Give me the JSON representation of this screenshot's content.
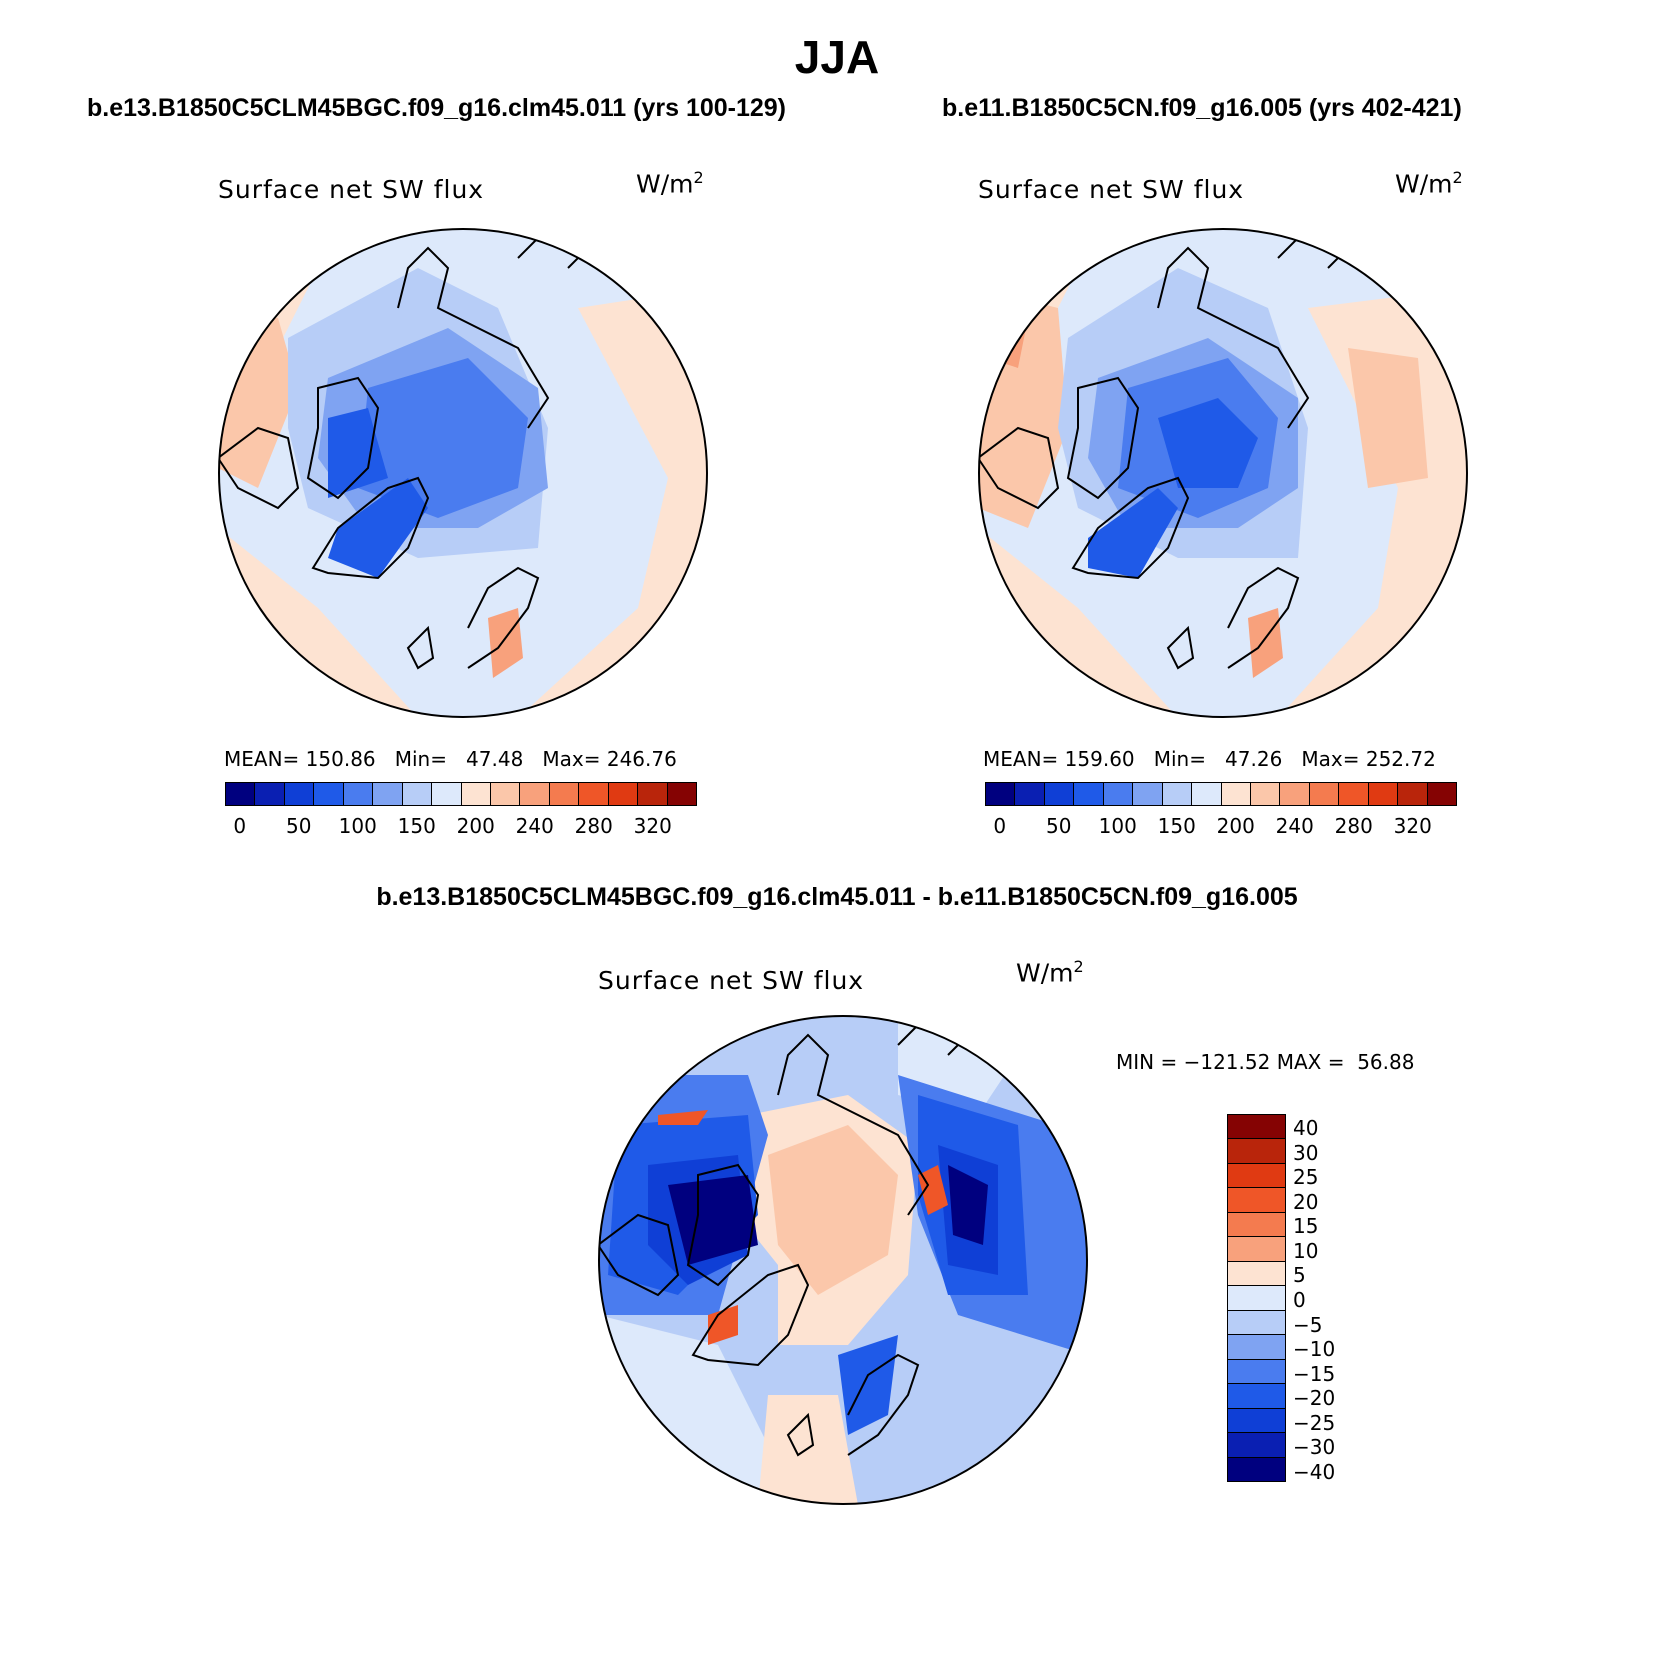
{
  "figure": {
    "title": "JJA",
    "diff_title": "b.e13.B1850C5CLM45BGC.f09_g16.clm45.011 - b.e11.B1850C5CN.f09_g16.005"
  },
  "panels": [
    {
      "case_title": "b.e13.B1850C5CLM45BGC.f09_g16.clm45.011 (yrs 100-129)",
      "variable": "Surface net SW flux",
      "units": "W/m",
      "units_exp": "2",
      "stats": {
        "mean_label": "MEAN=",
        "mean": "150.86",
        "min_label": "Min=",
        "min": "47.48",
        "max_label": "Max=",
        "max": "246.76"
      }
    },
    {
      "case_title": "b.e11.B1850C5CN.f09_g16.005 (yrs 402-421)",
      "variable": "Surface net SW flux",
      "units": "W/m",
      "units_exp": "2",
      "stats": {
        "mean_label": "MEAN=",
        "mean": "159.60",
        "min_label": "Min=",
        "min": "47.26",
        "max_label": "Max=",
        "max": "252.72"
      }
    },
    {
      "variable": "Surface net SW flux",
      "units": "W/m",
      "units_exp": "2",
      "stats": {
        "min_label": "MIN =",
        "min": "−121.52",
        "max_label": "MAX =",
        "max": "56.88"
      }
    }
  ],
  "colorbars": {
    "absolute": {
      "colors": [
        "#00007f",
        "#0a1fb2",
        "#0f3fd6",
        "#1f5ae8",
        "#4a7cef",
        "#7fa3f2",
        "#b7cdf7",
        "#dde9fb",
        "#fde3d2",
        "#fbc7aa",
        "#f8a17c",
        "#f47b4f",
        "#ef5628",
        "#e03a12",
        "#b9250b",
        "#850303"
      ],
      "labels": [
        "0",
        "50",
        "100",
        "150",
        "200",
        "240",
        "280",
        "320"
      ]
    },
    "difference": {
      "colors_top_to_bottom": [
        "#850303",
        "#b9250b",
        "#e03a12",
        "#ef5628",
        "#f47b4f",
        "#f8a17c",
        "#fde3d2",
        "#dde9fb",
        "#b7cdf7",
        "#7fa3f2",
        "#4a7cef",
        "#1f5ae8",
        "#0f3fd6",
        "#0a1fb2",
        "#00007f"
      ],
      "labels_top_to_bottom": [
        "40",
        "30",
        "25",
        "20",
        "15",
        "10",
        "5",
        "0",
        "−5",
        "−10",
        "−15",
        "−20",
        "−25",
        "−30",
        "−40"
      ]
    }
  },
  "map_colors": {
    "ocean_bg": "#dde9fb",
    "warm_low": "#fde3d2",
    "warm_mid": "#fbc7aa",
    "warm_high": "#f8a17c",
    "warm_max": "#ef5628",
    "cool_low": "#b7cdf7",
    "cool_mid": "#7fa3f2",
    "cool_high": "#4a7cef",
    "cool_deep": "#1f5ae8",
    "cool_max": "#0f3fd6",
    "cool_extreme": "#00007f"
  }
}
